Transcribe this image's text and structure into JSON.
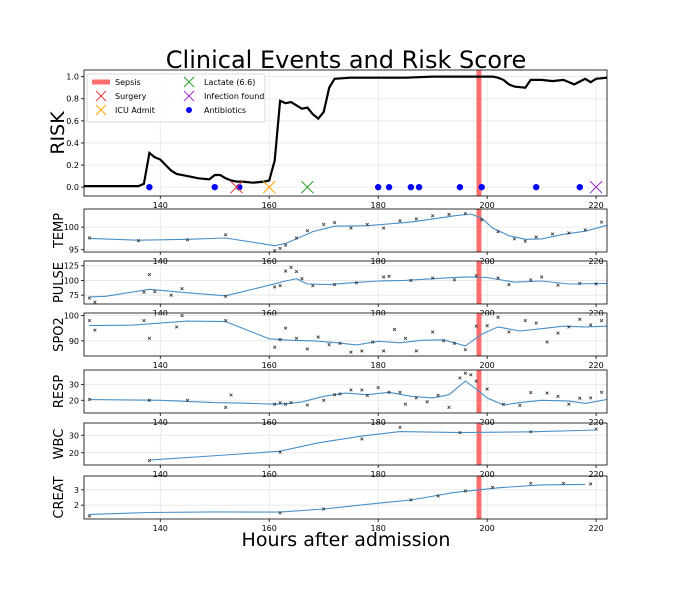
{
  "chart_data": {
    "type": "line",
    "title": "Clinical Events and Risk Score",
    "xlabel": "Hours after admission",
    "xlim": [
      126,
      222
    ],
    "xticks": [
      140,
      160,
      180,
      200,
      220
    ],
    "sepsis_time": 198.5,
    "colors": {
      "sepsis": "#ff6e6e",
      "surgery": "#e03c3c",
      "icu": "#ffa500",
      "lactate": "#2ca02c",
      "infection": "#9b30c8",
      "antibiotics": "#0000ff",
      "vital_line": "#4a90c8",
      "risk_line": "#000000"
    },
    "legend": {
      "sepsis": "Sepsis",
      "surgery": "Surgery",
      "icu": "ICU Admit",
      "lactate": "Lactate (6.6)",
      "infection": "Infection found",
      "antibiotics": "Antibiotics"
    },
    "risk": {
      "ylabel": "RISK",
      "ylim": [
        -0.08,
        1.06
      ],
      "yticks": [
        "0.0",
        "0.2",
        "0.4",
        "0.6",
        "0.8",
        "1.0"
      ],
      "x": [
        126,
        136,
        137,
        138,
        139,
        140,
        141,
        142,
        143,
        145,
        147,
        149,
        150,
        151,
        152,
        153,
        154,
        155,
        157,
        159,
        160,
        161,
        162,
        163,
        164,
        165,
        166,
        167,
        168,
        169,
        170,
        171,
        172,
        175,
        180,
        185,
        190,
        195,
        197,
        198,
        199,
        200,
        201,
        202,
        203,
        204,
        205,
        207,
        208,
        209,
        210,
        212,
        214,
        216,
        218,
        219,
        220,
        222
      ],
      "y": [
        0.01,
        0.01,
        0.03,
        0.31,
        0.27,
        0.25,
        0.2,
        0.15,
        0.12,
        0.1,
        0.08,
        0.07,
        0.11,
        0.11,
        0.08,
        0.06,
        0.05,
        0.05,
        0.04,
        0.05,
        0.06,
        0.24,
        0.78,
        0.76,
        0.77,
        0.74,
        0.71,
        0.72,
        0.66,
        0.62,
        0.68,
        0.9,
        0.98,
        0.99,
        0.99,
        0.99,
        1.0,
        1.0,
        1.0,
        1.0,
        1.0,
        1.0,
        1.0,
        0.99,
        0.97,
        0.93,
        0.91,
        0.9,
        0.97,
        0.97,
        0.97,
        0.96,
        0.97,
        0.93,
        0.98,
        0.95,
        0.98,
        0.99
      ],
      "surgery_x": 154,
      "icu_x": 160,
      "lactate_x": 167,
      "infection_x": 220,
      "antibiotics_x": [
        138,
        150,
        154.5,
        180,
        182,
        186,
        187.5,
        195,
        199,
        209,
        217
      ]
    },
    "vitals": [
      {
        "name": "TEMP",
        "ylim": [
          94.5,
          104
        ],
        "yticks": [
          95,
          100
        ],
        "line_x": [
          127,
          136,
          145,
          152,
          161,
          163,
          165,
          168,
          172,
          178,
          186,
          194,
          197,
          199,
          201,
          204,
          207,
          210,
          214,
          218,
          222
        ],
        "line_y": [
          97.5,
          97.1,
          97.3,
          97.6,
          95.9,
          96.4,
          97.4,
          99,
          100.2,
          100.3,
          101.1,
          102.5,
          102.9,
          102,
          99.8,
          98.1,
          97.3,
          97.4,
          98.4,
          99.1,
          100.4
        ],
        "pts_x": [
          127,
          136,
          145,
          152,
          161,
          162,
          163,
          165,
          167,
          170,
          172,
          175,
          178,
          181,
          184,
          187,
          190,
          193,
          196,
          199,
          202,
          205,
          207,
          209,
          212,
          215,
          218,
          221
        ],
        "pts_y": [
          97.6,
          97,
          97.2,
          98.3,
          94.8,
          95.3,
          96,
          97.6,
          99.2,
          100.6,
          101,
          99.8,
          100.6,
          99.8,
          101.4,
          101.8,
          102.5,
          102.8,
          103,
          101.6,
          99,
          97.4,
          96.9,
          97.8,
          98.5,
          98.7,
          99.4,
          101.1
        ]
      },
      {
        "name": "PULSE",
        "ylim": [
          60,
          133
        ],
        "yticks": [
          75,
          100,
          125
        ],
        "line_x": [
          127,
          130,
          138,
          145,
          152,
          160,
          163,
          165,
          167,
          171,
          175,
          180,
          185,
          190,
          196,
          200,
          205,
          210,
          215,
          222
        ],
        "line_y": [
          72,
          73,
          85,
          79,
          74,
          92,
          99,
          103,
          94,
          93,
          96,
          99,
          100,
          103,
          106,
          105,
          97,
          99,
          94,
          95
        ],
        "pts_x": [
          127,
          128,
          137,
          138,
          139,
          142,
          144,
          152,
          161,
          162,
          163,
          164,
          165,
          166,
          168,
          172,
          176,
          181,
          182,
          186,
          190,
          194,
          198,
          202,
          204,
          208,
          210,
          213,
          217,
          220
        ],
        "pts_y": [
          70,
          63,
          80,
          110,
          81,
          75,
          86,
          73,
          89,
          91,
          116,
          122,
          115,
          103,
          91,
          93,
          96,
          106,
          107,
          100,
          104,
          101,
          108,
          104,
          93,
          101,
          106,
          92,
          95,
          94
        ]
      },
      {
        "name": "SPO2",
        "ylim": [
          84,
          101
        ],
        "yticks": [
          90,
          100
        ],
        "line_x": [
          127,
          135,
          145,
          152,
          160,
          164,
          168,
          172,
          176,
          180,
          184,
          188,
          192,
          196,
          199,
          202,
          206,
          210,
          214,
          218,
          222
        ],
        "line_y": [
          96,
          96.2,
          97.8,
          97.6,
          90.8,
          90.2,
          90,
          89.3,
          88.4,
          89.8,
          89.2,
          90.2,
          90.4,
          88,
          92.6,
          95.5,
          93.9,
          94.8,
          95.8,
          95.5,
          95.8
        ],
        "pts_x": [
          127,
          128,
          137,
          138,
          143,
          144,
          152,
          161,
          162,
          163,
          165,
          167,
          169,
          171,
          173,
          175,
          177,
          179,
          181,
          183,
          185,
          187,
          190,
          192,
          194,
          196,
          198,
          200,
          202,
          204,
          207,
          209,
          211,
          213,
          215,
          217,
          219,
          221
        ],
        "pts_y": [
          98,
          94.2,
          98,
          91,
          95.5,
          100,
          98,
          87.5,
          90.5,
          95,
          91,
          86.8,
          91.5,
          88.5,
          89,
          85.5,
          86,
          89.5,
          86,
          94.5,
          91,
          86,
          93.5,
          90,
          89,
          86.5,
          95.8,
          96,
          99.3,
          93.5,
          98,
          97,
          89.5,
          93,
          95.5,
          98.5,
          96.3,
          98
        ]
      },
      {
        "name": "RESP",
        "ylim": [
          12,
          39
        ],
        "yticks": [
          20,
          30
        ],
        "line_x": [
          127,
          140,
          150,
          155,
          161,
          163,
          166,
          170,
          174,
          178,
          182,
          186,
          190,
          193,
          196,
          198,
          200,
          203,
          206,
          210,
          215,
          218,
          222
        ],
        "line_y": [
          20.5,
          20,
          18.5,
          18.2,
          17.5,
          17.8,
          19,
          22.5,
          24.5,
          23.5,
          25,
          22.5,
          21.5,
          23.5,
          32,
          27,
          21.5,
          17,
          18.5,
          20,
          19.5,
          18,
          20.5
        ],
        "pts_x": [
          127,
          138,
          145,
          152,
          153,
          161,
          162,
          163,
          164,
          167,
          170,
          172,
          173,
          175,
          177,
          178,
          180,
          182,
          184,
          185,
          187,
          189,
          191,
          193,
          195,
          196,
          197,
          198,
          200,
          203,
          206,
          208,
          211,
          213,
          215,
          217,
          219,
          221
        ],
        "pts_y": [
          20.5,
          20,
          20,
          15.5,
          23.3,
          17.5,
          18.5,
          17.5,
          18.5,
          17,
          20,
          23.5,
          24,
          26.5,
          26.5,
          23,
          28,
          25,
          25,
          17.5,
          21.5,
          19,
          23,
          15.5,
          34,
          37,
          36,
          32,
          27,
          17.5,
          16.8,
          24.8,
          24.5,
          22.5,
          17.5,
          21.3,
          21.5,
          25
        ]
      },
      {
        "name": "WBC",
        "ylim": [
          13,
          37
        ],
        "yticks": [
          20,
          30
        ],
        "line_x": [
          138,
          152,
          162,
          169,
          177,
          184,
          195,
          208,
          220
        ],
        "line_y": [
          15.8,
          18.7,
          20.9,
          25.7,
          29.5,
          32.1,
          31.5,
          32,
          33
        ],
        "pts_x": [
          138,
          162,
          177,
          184,
          195,
          208,
          220
        ],
        "pts_y": [
          15.5,
          20.3,
          27.9,
          34.5,
          31.5,
          32,
          33.5
        ]
      },
      {
        "name": "CREAT",
        "ylim": [
          1.1,
          3.9
        ],
        "yticks": [
          2,
          3
        ],
        "line_x": [
          127,
          138,
          150,
          162,
          170,
          178,
          186,
          194,
          202,
          210,
          218
        ],
        "line_y": [
          1.4,
          1.52,
          1.56,
          1.55,
          1.75,
          2.06,
          2.34,
          2.83,
          3.13,
          3.32,
          3.35
        ],
        "pts_x": [
          127,
          162,
          170,
          186,
          191,
          196,
          201,
          208,
          214,
          219
        ],
        "pts_y": [
          1.3,
          1.5,
          1.75,
          2.34,
          2.6,
          2.93,
          3.16,
          3.42,
          3.42,
          3.38
        ]
      }
    ]
  }
}
